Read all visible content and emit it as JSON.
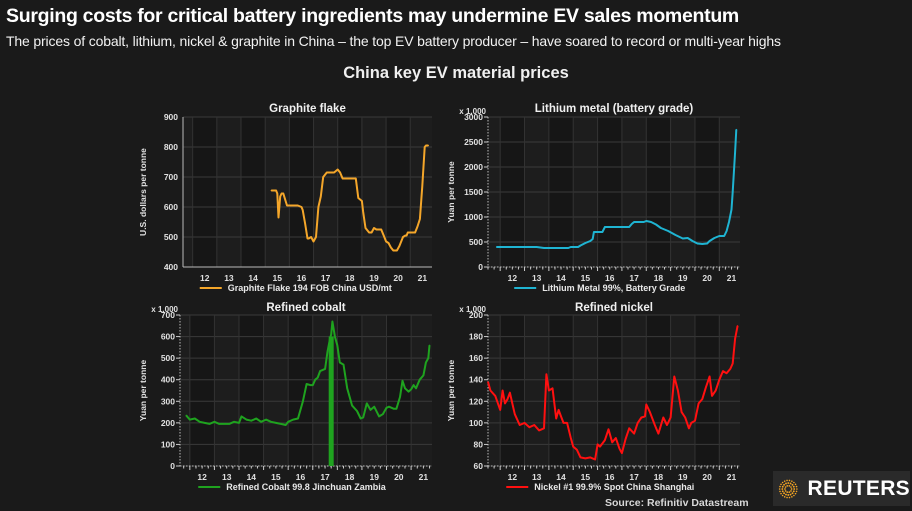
{
  "headline": "Surging costs for critical battery ingredients may undermine EV sales momentum",
  "subheadline": "The prices of cobalt, lithium, nickel & graphite in China – the top EV battery producer – have soared to record or multi-year highs",
  "figure_title": "China key EV material prices",
  "source": "Source: Refinitiv Datastream",
  "logo": {
    "name": "REUTERS",
    "icon": "reuters-dot-ring-icon",
    "icon_color": "#f5a623"
  },
  "chart_data": [
    {
      "type": "line",
      "id": "graphite",
      "title": "Graphite flake",
      "ylabel": "U.S. dollars per tonne",
      "yunit_note": "",
      "ylim": [
        400,
        900
      ],
      "yticks": [
        400,
        500,
        600,
        700,
        800,
        900
      ],
      "xlim": [
        2011.6,
        2021.9
      ],
      "xticks": [
        12,
        13,
        14,
        15,
        16,
        17,
        18,
        19,
        20,
        21
      ],
      "grid": true,
      "legend": "bottom",
      "color": "#f4a62a",
      "series": [
        {
          "name": "Graphite Flake 194 FOB China USD/mt",
          "x": [
            2015.25,
            2015.45,
            2015.5,
            2015.55,
            2015.62,
            2015.68,
            2015.75,
            2015.9,
            2016.0,
            2016.1,
            2016.35,
            2016.5,
            2016.55,
            2016.65,
            2016.75,
            2016.8,
            2016.9,
            2017.0,
            2017.1,
            2017.2,
            2017.3,
            2017.4,
            2017.45,
            2017.55,
            2017.7,
            2017.85,
            2018.0,
            2018.1,
            2018.2,
            2018.3,
            2018.5,
            2018.75,
            2018.85,
            2019.0,
            2019.05,
            2019.15,
            2019.3,
            2019.4,
            2019.5,
            2019.6,
            2019.8,
            2019.9,
            2020.0,
            2020.1,
            2020.2,
            2020.3,
            2020.45,
            2020.55,
            2020.7,
            2020.8,
            2020.85,
            2020.9,
            2021.0,
            2021.2,
            2021.3,
            2021.4,
            2021.5,
            2021.6,
            2021.65,
            2021.75
          ],
          "values": [
            655,
            655,
            645,
            565,
            635,
            645,
            645,
            605,
            605,
            605,
            605,
            600,
            590,
            545,
            495,
            495,
            500,
            485,
            500,
            600,
            635,
            700,
            705,
            715,
            715,
            715,
            725,
            715,
            695,
            695,
            695,
            695,
            630,
            620,
            585,
            530,
            515,
            515,
            530,
            525,
            525,
            505,
            485,
            480,
            465,
            455,
            455,
            470,
            500,
            505,
            505,
            515,
            515,
            515,
            535,
            560,
            670,
            800,
            805,
            805
          ]
        }
      ]
    },
    {
      "type": "line",
      "id": "lithium",
      "title": "Lithium metal (battery grade)",
      "ylabel": "Yuan per tonne",
      "yunit_note": "x 1,000",
      "ylim": [
        0,
        3000
      ],
      "yticks": [
        0,
        500,
        1000,
        1500,
        2000,
        2500,
        3000
      ],
      "xlim": [
        2011.5,
        2021.85
      ],
      "xticks": [
        12,
        13,
        14,
        15,
        16,
        17,
        18,
        19,
        20,
        21
      ],
      "grid": true,
      "legend": "bottom",
      "color": "#1fb4d2",
      "series": [
        {
          "name": "Lithium Metal 99%, Battery Grade",
          "x": [
            2011.85,
            2012.5,
            2013.0,
            2013.5,
            2013.8,
            2014.2,
            2014.8,
            2014.9,
            2015.2,
            2015.3,
            2015.5,
            2015.7,
            2015.8,
            2015.85,
            2016.2,
            2016.3,
            2016.9,
            2017.3,
            2017.4,
            2017.5,
            2017.9,
            2018.0,
            2018.2,
            2018.4,
            2018.6,
            2018.9,
            2019.2,
            2019.5,
            2019.7,
            2019.9,
            2020.1,
            2020.3,
            2020.5,
            2020.6,
            2020.8,
            2021.0,
            2021.2,
            2021.3,
            2021.4,
            2021.5,
            2021.55,
            2021.6,
            2021.65,
            2021.7
          ],
          "values": [
            400,
            400,
            400,
            400,
            380,
            380,
            380,
            400,
            400,
            430,
            480,
            520,
            560,
            700,
            700,
            800,
            800,
            800,
            860,
            900,
            900,
            920,
            900,
            850,
            780,
            720,
            640,
            570,
            580,
            520,
            470,
            460,
            470,
            520,
            580,
            620,
            620,
            720,
            900,
            1150,
            1500,
            1900,
            2300,
            2750
          ]
        }
      ]
    },
    {
      "type": "line",
      "id": "cobalt",
      "title": "Refined cobalt",
      "ylabel": "Yuan per tonne",
      "yunit_note": "x 1,000",
      "ylim": [
        0,
        700
      ],
      "yticks": [
        0,
        100,
        200,
        300,
        400,
        500,
        600,
        700
      ],
      "xlim": [
        2011.6,
        2021.85
      ],
      "xticks": [
        12,
        13,
        14,
        15,
        16,
        17,
        18,
        19,
        20,
        21
      ],
      "grid": true,
      "legend": "bottom",
      "color": "#1fa31f",
      "series": [
        {
          "name": "Refined Cobalt 99.8 Jinchuan Zambia",
          "x": [
            2011.85,
            2012.0,
            2012.2,
            2012.4,
            2012.6,
            2012.8,
            2013.0,
            2013.2,
            2013.4,
            2013.6,
            2013.8,
            2014.0,
            2014.1,
            2014.3,
            2014.5,
            2014.7,
            2014.9,
            2015.1,
            2015.3,
            2015.5,
            2015.7,
            2015.9,
            2016.0,
            2016.2,
            2016.4,
            2016.6,
            2016.75,
            2016.9,
            2017.0,
            2017.1,
            2017.2,
            2017.3,
            2017.5,
            2017.6,
            2017.7,
            2017.75,
            2017.8,
            2017.9,
            2018.0,
            2018.1,
            2018.25,
            2018.4,
            2018.6,
            2018.8,
            2018.95,
            2019.05,
            2019.2,
            2019.35,
            2019.5,
            2019.7,
            2019.85,
            2020.0,
            2020.1,
            2020.3,
            2020.4,
            2020.55,
            2020.65,
            2020.75,
            2020.9,
            2021.0,
            2021.1,
            2021.2,
            2021.35,
            2021.5,
            2021.6,
            2021.7,
            2021.75
          ],
          "values": [
            235,
            215,
            220,
            205,
            200,
            195,
            205,
            195,
            195,
            195,
            205,
            200,
            230,
            215,
            210,
            220,
            205,
            215,
            205,
            200,
            195,
            190,
            205,
            215,
            220,
            300,
            380,
            375,
            375,
            400,
            410,
            440,
            450,
            530,
            590,
            610,
            670,
            600,
            560,
            480,
            470,
            360,
            280,
            255,
            220,
            225,
            290,
            260,
            275,
            230,
            240,
            270,
            275,
            265,
            265,
            320,
            395,
            360,
            345,
            355,
            375,
            360,
            400,
            420,
            480,
            500,
            560
          ]
        }
      ],
      "annotation": {
        "type": "vertical-band",
        "x": 2017.75,
        "color": "#1fa31f"
      }
    },
    {
      "type": "line",
      "id": "nickel",
      "title": "Refined nickel",
      "ylabel": "Yuan per tonne",
      "yunit_note": "x 1,000",
      "ylim": [
        60,
        200
      ],
      "yticks": [
        60,
        80,
        100,
        120,
        140,
        160,
        180,
        200
      ],
      "xlim": [
        2011.5,
        2021.85
      ],
      "xticks": [
        12,
        13,
        14,
        15,
        16,
        17,
        18,
        19,
        20,
        21
      ],
      "grid": true,
      "legend": "bottom",
      "color": "#ff1010",
      "series": [
        {
          "name": "Nickel #1 99.9% Spot China Shanghai",
          "x": [
            2011.5,
            2011.6,
            2011.8,
            2012.0,
            2012.1,
            2012.2,
            2012.3,
            2012.4,
            2012.5,
            2012.6,
            2012.8,
            2013.0,
            2013.2,
            2013.4,
            2013.6,
            2013.8,
            2013.9,
            2014.0,
            2014.15,
            2014.3,
            2014.4,
            2014.5,
            2014.6,
            2014.75,
            2014.9,
            2015.0,
            2015.15,
            2015.3,
            2015.5,
            2015.7,
            2015.9,
            2016.0,
            2016.1,
            2016.3,
            2016.45,
            2016.6,
            2016.75,
            2016.9,
            2017.0,
            2017.15,
            2017.3,
            2017.5,
            2017.65,
            2017.8,
            2017.95,
            2018.0,
            2018.15,
            2018.35,
            2018.5,
            2018.7,
            2018.85,
            2019.0,
            2019.15,
            2019.3,
            2019.45,
            2019.6,
            2019.75,
            2019.85,
            2020.0,
            2020.15,
            2020.3,
            2020.45,
            2020.6,
            2020.7,
            2020.85,
            2021.0,
            2021.15,
            2021.3,
            2021.45,
            2021.55,
            2021.65,
            2021.75
          ],
          "values": [
            138,
            130,
            125,
            112,
            130,
            118,
            122,
            128,
            118,
            108,
            98,
            100,
            96,
            98,
            93,
            95,
            145,
            130,
            132,
            104,
            112,
            106,
            100,
            100,
            86,
            78,
            75,
            68,
            67,
            68,
            66,
            80,
            78,
            84,
            94,
            82,
            86,
            76,
            72,
            85,
            95,
            90,
            100,
            105,
            106,
            117,
            110,
            98,
            90,
            105,
            98,
            105,
            143,
            130,
            110,
            105,
            95,
            100,
            102,
            118,
            122,
            133,
            143,
            125,
            130,
            140,
            148,
            146,
            150,
            155,
            178,
            190
          ]
        }
      ]
    }
  ]
}
